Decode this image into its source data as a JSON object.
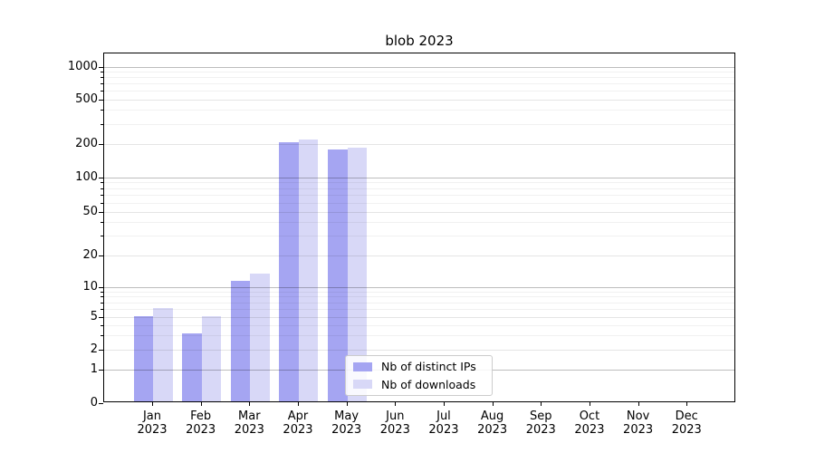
{
  "chart_data": {
    "type": "bar",
    "title": "blob 2023",
    "categories": [
      "Jan 2023",
      "Feb 2023",
      "Mar 2023",
      "Apr 2023",
      "May 2023",
      "Jun 2023",
      "Jul 2023",
      "Aug 2023",
      "Sep 2023",
      "Oct 2023",
      "Nov 2023",
      "Dec 2023"
    ],
    "series": [
      {
        "name": "Nb of distinct IPs",
        "color": "#a5a5f2",
        "values": [
          5,
          3,
          11,
          200,
          173,
          0,
          0,
          0,
          0,
          0,
          0,
          0
        ]
      },
      {
        "name": "Nb of downloads",
        "color": "#d8d8f7",
        "values": [
          6,
          5,
          13,
          213,
          180,
          0,
          0,
          0,
          0,
          0,
          0,
          0
        ]
      }
    ],
    "xlabel": "",
    "ylabel": "",
    "yscale": "symlog",
    "ylim": [
      0,
      1300
    ],
    "yticks": [
      0,
      1,
      2,
      5,
      10,
      20,
      50,
      100,
      200,
      500,
      1000
    ],
    "ytick_labels": [
      "0",
      "1",
      "2",
      "5",
      "10",
      "20",
      "50",
      "100",
      "200",
      "500",
      "1000"
    ],
    "minor_yticks": [
      3,
      4,
      6,
      7,
      8,
      9,
      30,
      40,
      60,
      70,
      80,
      90,
      300,
      400,
      600,
      700,
      800,
      900
    ],
    "grid": true,
    "legend_position": "inside lower-center"
  },
  "legend": {
    "entries": [
      {
        "label": "Nb of distinct IPs"
      },
      {
        "label": "Nb of downloads"
      }
    ]
  }
}
